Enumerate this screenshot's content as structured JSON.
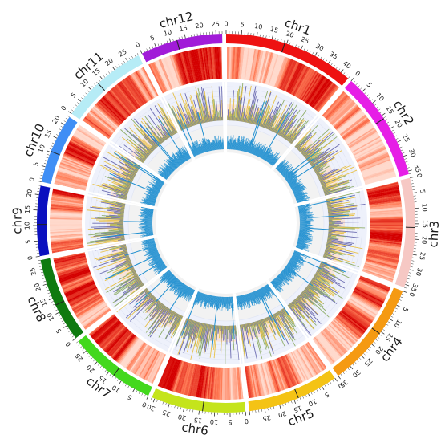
{
  "chart_data": {
    "type": "circos",
    "chromosomes": [
      {
        "name": "chr1",
        "length": 43,
        "color": "#ee1111",
        "ticks": [
          "0",
          "5",
          "10",
          "15",
          "20",
          "25",
          "30",
          "35",
          "40"
        ]
      },
      {
        "name": "chr2",
        "length": 36,
        "color": "#e61ee6",
        "ticks": [
          "0",
          "5",
          "10",
          "15",
          "20",
          "25",
          "30",
          "35"
        ]
      },
      {
        "name": "chr3",
        "length": 36,
        "color": "#f6c8c4",
        "ticks": [
          "0",
          "5",
          "10",
          "15",
          "20",
          "25",
          "30",
          "35"
        ]
      },
      {
        "name": "chr4",
        "length": 35,
        "color": "#f59a12",
        "ticks": [
          "0",
          "5",
          "10",
          "15",
          "20",
          "25",
          "30",
          "35"
        ]
      },
      {
        "name": "chr5",
        "length": 30,
        "color": "#f4c315",
        "ticks": [
          "0",
          "5",
          "10",
          "15",
          "20",
          "25"
        ]
      },
      {
        "name": "chr6",
        "length": 31,
        "color": "#c4e41c",
        "ticks": [
          "0",
          "5",
          "10",
          "15",
          "20",
          "25",
          "30"
        ]
      },
      {
        "name": "chr7",
        "length": 29,
        "color": "#43d81d",
        "ticks": [
          "0",
          "5",
          "10",
          "15",
          "20",
          "25"
        ]
      },
      {
        "name": "chr8",
        "length": 28,
        "color": "#0f7a10",
        "ticks": [
          "0",
          "5",
          "10",
          "15",
          "20",
          "25"
        ]
      },
      {
        "name": "chr9",
        "length": 23,
        "color": "#0a10bf",
        "ticks": [
          "0",
          "5",
          "10",
          "15",
          "20"
        ]
      },
      {
        "name": "chr10",
        "length": 23,
        "color": "#3f8ef5",
        "ticks": [
          "0",
          "5",
          "10",
          "15",
          "20"
        ]
      },
      {
        "name": "chr11",
        "length": 29,
        "color": "#b6ecf6",
        "ticks": [
          "0",
          "5",
          "10",
          "15",
          "20",
          "25"
        ]
      },
      {
        "name": "chr12",
        "length": 27,
        "color": "#a11bd8",
        "ticks": [
          "0",
          "5",
          "10",
          "15",
          "20",
          "25"
        ]
      }
    ],
    "tracks": [
      {
        "kind": "heatmap",
        "colors": [
          "#fff1ea",
          "#ff7b55",
          "#d40000"
        ]
      },
      {
        "kind": "histogram",
        "colors": [
          "#8fae6a",
          "#e8c24a",
          "#6b6bb0"
        ]
      },
      {
        "kind": "bar",
        "colors": [
          "#1f8fd0"
        ]
      }
    ]
  }
}
